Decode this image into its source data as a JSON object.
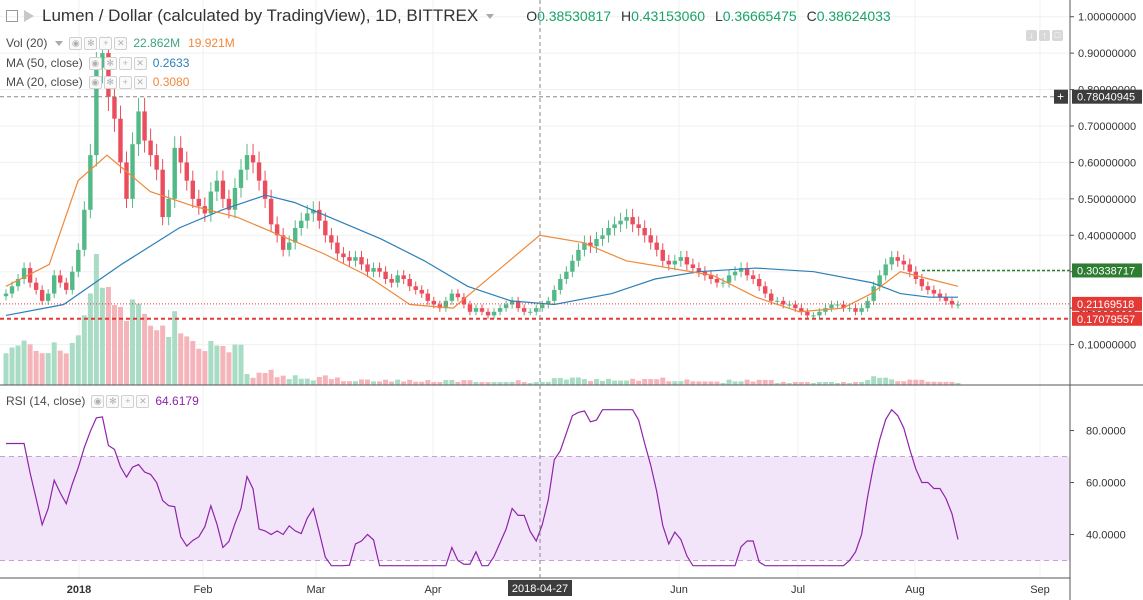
{
  "header": {
    "title": "Lumen / Dollar (calculated by TradingView), 1D, BITTREX",
    "ohlc": [
      {
        "k": "O",
        "v": "0.38530817"
      },
      {
        "k": "H",
        "v": "0.43153060"
      },
      {
        "k": "L",
        "v": "0.36665475"
      },
      {
        "k": "C",
        "v": "0.38624033"
      }
    ]
  },
  "legends": {
    "vol": {
      "label": "Vol (20)",
      "v1": "22.862M",
      "v2": "19.921M",
      "c1": "#3fa383",
      "c2": "#f0883a"
    },
    "ma50": {
      "label": "MA (50, close)",
      "value": "0.2633",
      "color": "#2c7fb8"
    },
    "ma20": {
      "label": "MA (20, close)",
      "value": "0.3080",
      "color": "#f0883a"
    },
    "rsi": {
      "label": "RSI (14, close)",
      "value": "64.6179",
      "color": "#8e24aa"
    }
  },
  "price_axis": {
    "ticks": [
      "0.10000000",
      "0.20000000",
      "0.30000000",
      "0.40000000",
      "0.50000000",
      "0.60000000",
      "0.70000000",
      "0.80000000",
      "0.90000000",
      "1.00000000"
    ],
    "labels": [
      {
        "text": "0.78040945",
        "value": 0.7804,
        "bg": "#3d3d3d"
      },
      {
        "text": "0.30338717",
        "value": 0.3034,
        "bg": "#2e7d32"
      },
      {
        "text": "0.21169518",
        "value": 0.2117,
        "bg": "#e53935"
      },
      {
        "text": "0.17079557",
        "value": 0.1708,
        "bg": "#e53935"
      }
    ],
    "plus_sign": "+"
  },
  "rsi_axis": {
    "ticks": [
      "40.0000",
      "60.0000",
      "80.0000"
    ]
  },
  "time_axis": {
    "ticks": [
      "2018",
      "Feb",
      "Mar",
      "Apr",
      "Jun",
      "Jul",
      "Aug",
      "Sep"
    ],
    "crosshair_label": "2018-04-27"
  },
  "colors": {
    "up": "#53b987",
    "down": "#eb4d5c",
    "ma50": "#2c7fb8",
    "ma20": "#f0883a",
    "rsi": "#8e24aa",
    "rsi_band": "#f3e5f9"
  },
  "chart_data": {
    "type": "candlestick",
    "symbol": "XLMUSD",
    "interval": "1D",
    "ylim": [
      0.0,
      1.0
    ],
    "rsi_levels": [
      30,
      70
    ],
    "series": [
      {
        "name": "MA (50, close)",
        "values": [
          [
            0,
            0.18
          ],
          [
            20,
            0.21
          ],
          [
            40,
            0.32
          ],
          [
            60,
            0.42
          ],
          [
            75,
            0.47
          ],
          [
            90,
            0.51
          ],
          [
            100,
            0.49
          ],
          [
            115,
            0.44
          ],
          [
            130,
            0.39
          ],
          [
            145,
            0.33
          ],
          [
            160,
            0.26
          ],
          [
            175,
            0.22
          ],
          [
            190,
            0.21
          ],
          [
            210,
            0.24
          ],
          [
            225,
            0.28
          ],
          [
            240,
            0.3
          ],
          [
            260,
            0.31
          ],
          [
            280,
            0.3
          ],
          [
            300,
            0.27
          ],
          [
            310,
            0.24
          ],
          [
            320,
            0.23
          ],
          [
            330,
            0.23
          ]
        ]
      },
      {
        "name": "MA (20, close)",
        "values": [
          [
            0,
            0.26
          ],
          [
            15,
            0.32
          ],
          [
            25,
            0.55
          ],
          [
            35,
            0.62
          ],
          [
            50,
            0.52
          ],
          [
            65,
            0.48
          ],
          [
            80,
            0.45
          ],
          [
            95,
            0.4
          ],
          [
            110,
            0.35
          ],
          [
            125,
            0.29
          ],
          [
            140,
            0.21
          ],
          [
            155,
            0.2
          ],
          [
            170,
            0.3
          ],
          [
            185,
            0.4
          ],
          [
            200,
            0.38
          ],
          [
            215,
            0.33
          ],
          [
            230,
            0.31
          ],
          [
            245,
            0.29
          ],
          [
            260,
            0.23
          ],
          [
            275,
            0.19
          ],
          [
            290,
            0.2
          ],
          [
            300,
            0.24
          ],
          [
            310,
            0.3
          ],
          [
            320,
            0.28
          ],
          [
            330,
            0.26
          ]
        ]
      }
    ],
    "close": [
      0.24,
      0.26,
      0.28,
      0.31,
      0.27,
      0.25,
      0.22,
      0.24,
      0.29,
      0.27,
      0.25,
      0.3,
      0.36,
      0.47,
      0.62,
      0.86,
      0.9,
      0.78,
      0.72,
      0.6,
      0.5,
      0.65,
      0.74,
      0.66,
      0.62,
      0.58,
      0.45,
      0.5,
      0.64,
      0.6,
      0.55,
      0.5,
      0.48,
      0.46,
      0.52,
      0.55,
      0.5,
      0.47,
      0.53,
      0.58,
      0.62,
      0.6,
      0.55,
      0.5,
      0.43,
      0.4,
      0.36,
      0.38,
      0.42,
      0.44,
      0.46,
      0.47,
      0.44,
      0.4,
      0.38,
      0.35,
      0.34,
      0.33,
      0.34,
      0.32,
      0.3,
      0.31,
      0.3,
      0.28,
      0.27,
      0.29,
      0.28,
      0.26,
      0.25,
      0.24,
      0.22,
      0.21,
      0.2,
      0.22,
      0.24,
      0.23,
      0.21,
      0.19,
      0.2,
      0.19,
      0.18,
      0.19,
      0.2,
      0.21,
      0.22,
      0.2,
      0.19,
      0.19,
      0.2,
      0.21,
      0.22,
      0.25,
      0.28,
      0.3,
      0.33,
      0.36,
      0.38,
      0.37,
      0.39,
      0.4,
      0.42,
      0.43,
      0.44,
      0.45,
      0.43,
      0.42,
      0.4,
      0.38,
      0.36,
      0.33,
      0.32,
      0.33,
      0.34,
      0.32,
      0.31,
      0.3,
      0.29,
      0.28,
      0.27,
      0.27,
      0.29,
      0.3,
      0.31,
      0.29,
      0.28,
      0.26,
      0.24,
      0.22,
      0.22,
      0.21,
      0.21,
      0.2,
      0.19,
      0.18,
      0.18,
      0.19,
      0.2,
      0.21,
      0.21,
      0.2,
      0.2,
      0.19,
      0.2,
      0.22,
      0.26,
      0.29,
      0.32,
      0.34,
      0.33,
      0.32,
      0.3,
      0.28,
      0.26,
      0.25,
      0.24,
      0.23,
      0.22,
      0.21,
      0.21
    ]
  }
}
